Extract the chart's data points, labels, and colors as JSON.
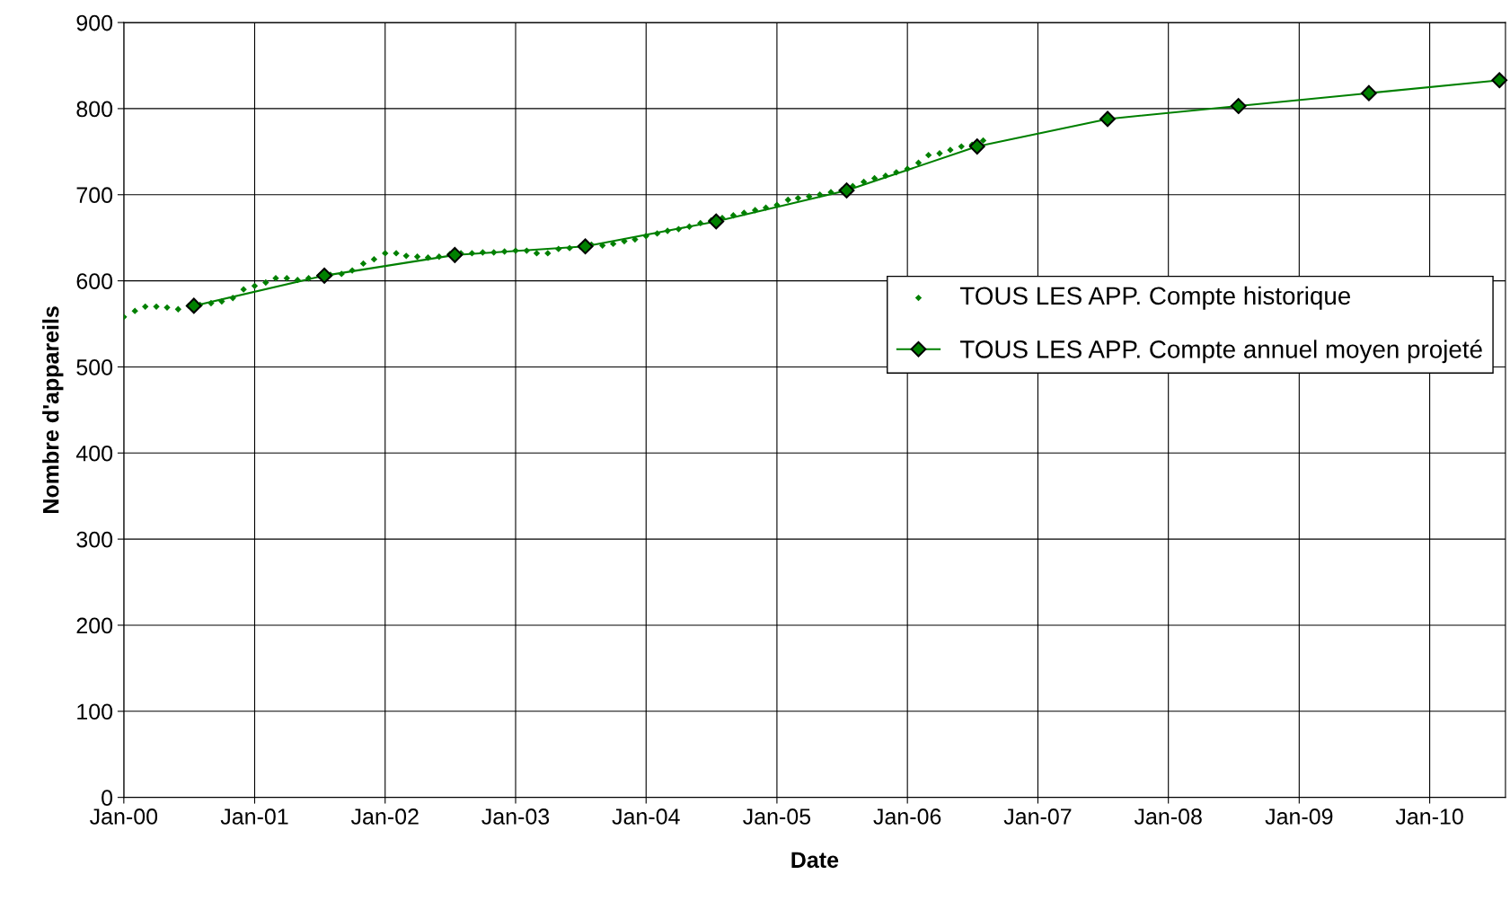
{
  "chart_data": {
    "type": "line",
    "xlabel": "Date",
    "ylabel": "Nombre d'appareils",
    "xlim": [
      "2000-01-01",
      "2010-08-01"
    ],
    "xticks": [
      {
        "value": "2000-01-01",
        "label": "Jan-00"
      },
      {
        "value": "2001-01-01",
        "label": "Jan-01"
      },
      {
        "value": "2002-01-01",
        "label": "Jan-02"
      },
      {
        "value": "2003-01-01",
        "label": "Jan-03"
      },
      {
        "value": "2004-01-01",
        "label": "Jan-04"
      },
      {
        "value": "2005-01-01",
        "label": "Jan-05"
      },
      {
        "value": "2006-01-01",
        "label": "Jan-06"
      },
      {
        "value": "2007-01-01",
        "label": "Jan-07"
      },
      {
        "value": "2008-01-01",
        "label": "Jan-08"
      },
      {
        "value": "2009-01-01",
        "label": "Jan-09"
      },
      {
        "value": "2010-01-01",
        "label": "Jan-10"
      }
    ],
    "ylim": [
      0,
      900
    ],
    "yticks": [
      0,
      100,
      200,
      300,
      400,
      500,
      600,
      700,
      800,
      900
    ],
    "grid": true,
    "legend": "right",
    "series": [
      {
        "name": "TOUS LES APP. Compte historique",
        "type": "scatter",
        "marker": "diamond",
        "color": "#008000",
        "x": [
          "2000-01-01",
          "2000-02-01",
          "2000-03-01",
          "2000-04-01",
          "2000-05-01",
          "2000-06-01",
          "2000-07-01",
          "2000-08-01",
          "2000-09-01",
          "2000-10-01",
          "2000-11-01",
          "2000-12-01",
          "2001-01-01",
          "2001-02-01",
          "2001-03-01",
          "2001-04-01",
          "2001-05-01",
          "2001-06-01",
          "2001-07-01",
          "2001-08-01",
          "2001-09-01",
          "2001-10-01",
          "2001-11-01",
          "2001-12-01",
          "2002-01-01",
          "2002-02-01",
          "2002-03-01",
          "2002-04-01",
          "2002-05-01",
          "2002-06-01",
          "2002-07-01",
          "2002-08-01",
          "2002-09-01",
          "2002-10-01",
          "2002-11-01",
          "2002-12-01",
          "2003-01-01",
          "2003-02-01",
          "2003-03-01",
          "2003-04-01",
          "2003-05-01",
          "2003-06-01",
          "2003-07-01",
          "2003-08-01",
          "2003-09-01",
          "2003-10-01",
          "2003-11-01",
          "2003-12-01",
          "2004-01-01",
          "2004-02-01",
          "2004-03-01",
          "2004-04-01",
          "2004-05-01",
          "2004-06-01",
          "2004-07-01",
          "2004-08-01",
          "2004-09-01",
          "2004-10-01",
          "2004-11-01",
          "2004-12-01",
          "2005-01-01",
          "2005-02-01",
          "2005-03-01",
          "2005-04-01",
          "2005-05-01",
          "2005-06-01",
          "2005-07-01",
          "2005-08-01",
          "2005-09-01",
          "2005-10-01",
          "2005-11-01",
          "2005-12-01",
          "2006-01-01",
          "2006-02-01",
          "2006-03-01",
          "2006-04-01",
          "2006-05-01",
          "2006-06-01",
          "2006-07-01",
          "2006-08-01"
        ],
        "values": [
          558,
          565,
          570,
          570,
          569,
          567,
          571,
          572,
          574,
          576,
          580,
          590,
          594,
          598,
          603,
          603,
          601,
          603,
          606,
          607,
          608,
          612,
          620,
          625,
          632,
          632,
          629,
          628,
          627,
          628,
          631,
          632,
          632,
          633,
          633,
          634,
          635,
          635,
          632,
          632,
          637,
          638,
          640,
          642,
          641,
          643,
          646,
          648,
          652,
          655,
          658,
          660,
          663,
          667,
          670,
          673,
          676,
          679,
          682,
          685,
          688,
          694,
          696,
          698,
          700,
          703,
          705,
          710,
          715,
          719,
          722,
          726,
          730,
          737,
          746,
          748,
          752,
          756,
          758,
          763
        ]
      },
      {
        "name": "TOUS LES APP. Compte annuel moyen projeté",
        "marker": "diamond",
        "color": "#008000",
        "x": [
          "2000-07-15",
          "2001-07-15",
          "2002-07-15",
          "2003-07-15",
          "2004-07-15",
          "2005-07-15",
          "2006-07-15",
          "2007-07-15",
          "2008-07-15",
          "2009-07-15",
          "2010-07-15"
        ],
        "values": [
          571,
          606,
          630,
          640,
          669,
          705,
          756,
          788,
          803,
          818,
          833
        ]
      }
    ]
  }
}
